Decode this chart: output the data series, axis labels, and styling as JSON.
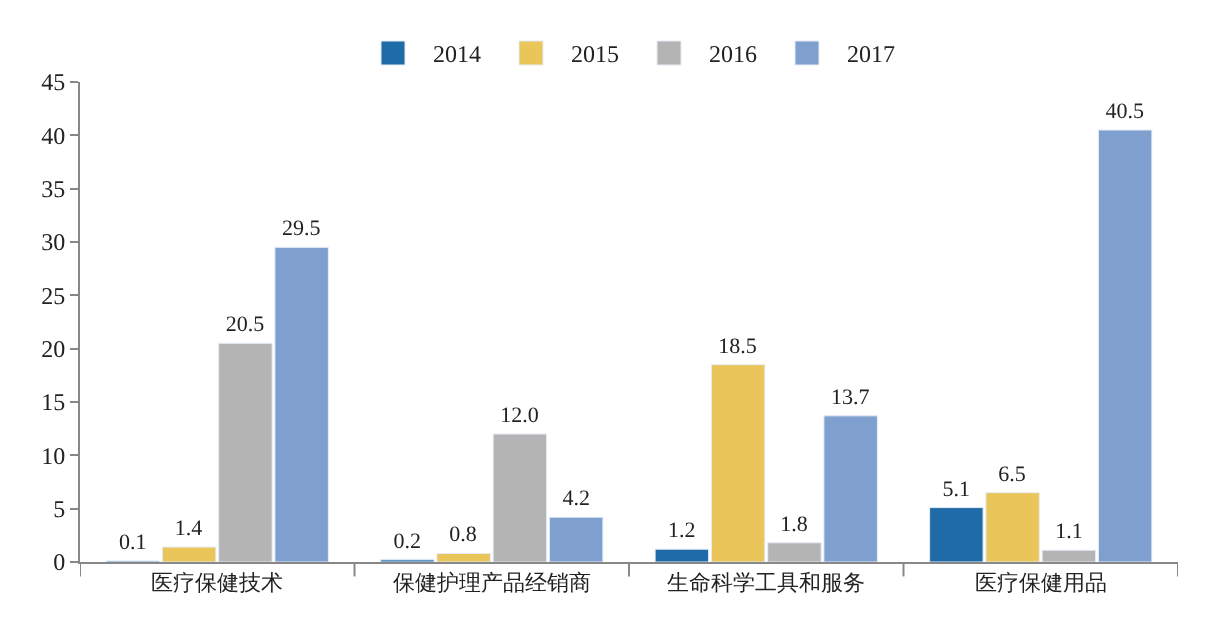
{
  "chart_data": {
    "type": "bar",
    "categories": [
      "医疗保健技术",
      "保健护理产品经销商",
      "生命科学工具和服务",
      "医疗保健用品"
    ],
    "series": [
      {
        "name": "2014",
        "color": "#1f6ba8",
        "values": [
          0.1,
          0.2,
          1.2,
          5.1
        ],
        "value_labels": [
          "0.1",
          "0.2",
          "1.2",
          "5.1"
        ]
      },
      {
        "name": "2015",
        "color": "#e9c55a",
        "values": [
          1.4,
          0.8,
          18.5,
          6.5
        ],
        "value_labels": [
          "1.4",
          "0.8",
          "18.5",
          "6.5"
        ]
      },
      {
        "name": "2016",
        "color": "#b4b4b4",
        "values": [
          20.5,
          12.0,
          1.8,
          1.1
        ],
        "value_labels": [
          "20.5",
          "12.0",
          "1.8",
          "1.1"
        ]
      },
      {
        "name": "2017",
        "color": "#7f9fcf",
        "values": [
          29.5,
          4.2,
          13.7,
          40.5
        ],
        "value_labels": [
          "29.5",
          "4.2",
          "13.7",
          "40.5"
        ]
      }
    ],
    "ylim": [
      0,
      45
    ],
    "yticks": [
      0,
      5,
      10,
      15,
      20,
      25,
      30,
      35,
      40,
      45
    ],
    "legend": "top"
  }
}
